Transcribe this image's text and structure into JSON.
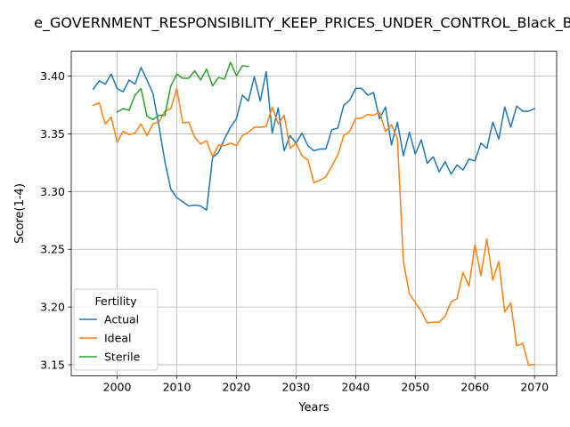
{
  "chart_data": {
    "type": "line",
    "title": "e_GOVERNMENT_RESPONSIBILITY_KEEP_PRICES_UNDER_CONTROL_Black_Belo",
    "xlabel": "Years",
    "ylabel": "Score(1-4)",
    "xlim": [
      1992.3,
      2073.7
    ],
    "ylim": [
      3.1405,
      3.4215
    ],
    "xticks": [
      2000,
      2010,
      2020,
      2030,
      2040,
      2050,
      2060,
      2070
    ],
    "yticks": [
      3.15,
      3.2,
      3.25,
      3.3,
      3.35,
      3.4
    ],
    "ytick_labels": [
      "3.15",
      "3.20",
      "3.25",
      "3.30",
      "3.35",
      "3.40"
    ],
    "grid": true,
    "legend": {
      "title": "Fertility",
      "placement": "lower-left"
    },
    "series": [
      {
        "name": "Actual",
        "color": "#1f77b4",
        "x": [
          1996,
          1997,
          1998,
          1999,
          2000,
          2001,
          2002,
          2003,
          2004,
          2005,
          2006,
          2007,
          2008,
          2009,
          2010,
          2011,
          2012,
          2013,
          2014,
          2015,
          2016,
          2017,
          2018,
          2019,
          2020,
          2021,
          2022,
          2023,
          2024,
          2025,
          2026,
          2027,
          2028,
          2029,
          2030,
          2031,
          2032,
          2033,
          2034,
          2035,
          2036,
          2037,
          2038,
          2039,
          2040,
          2041,
          2042,
          2043,
          2044,
          2045,
          2046,
          2047,
          2048,
          2049,
          2050,
          2051,
          2052,
          2053,
          2054,
          2055,
          2056,
          2057,
          2058,
          2059,
          2060,
          2061,
          2062,
          2063,
          2064,
          2065,
          2066,
          2067,
          2068,
          2069,
          2070
        ],
        "values": [
          3.3886,
          3.3959,
          3.393,
          3.4017,
          3.3893,
          3.3864,
          3.3966,
          3.393,
          3.4075,
          3.3966,
          3.3849,
          3.3572,
          3.3259,
          3.302,
          3.2948,
          3.2911,
          3.2875,
          3.2882,
          3.2875,
          3.2839,
          3.3295,
          3.3339,
          3.3455,
          3.3557,
          3.363,
          3.3835,
          3.3784,
          3.3995,
          3.3784,
          3.4039,
          3.3506,
          3.3725,
          3.3353,
          3.3484,
          3.3419,
          3.3506,
          3.3397,
          3.3353,
          3.3368,
          3.3368,
          3.3535,
          3.355,
          3.3747,
          3.3791,
          3.3893,
          3.3893,
          3.3835,
          3.3857,
          3.363,
          3.3732,
          3.3404,
          3.3601,
          3.331,
          3.3513,
          3.3324,
          3.3448,
          3.3244,
          3.3302,
          3.3171,
          3.3259,
          3.315,
          3.323,
          3.3186,
          3.3281,
          3.3266,
          3.3419,
          3.3375,
          3.3601,
          3.3455,
          3.3732,
          3.3557,
          3.374,
          3.3696,
          3.3696,
          3.3718
        ]
      },
      {
        "name": "Ideal",
        "color": "#ff7f0e",
        "x": [
          1996,
          1997,
          1998,
          1999,
          2000,
          2001,
          2002,
          2003,
          2004,
          2005,
          2006,
          2007,
          2008,
          2009,
          2010,
          2011,
          2012,
          2013,
          2014,
          2015,
          2016,
          2017,
          2018,
          2019,
          2020,
          2021,
          2022,
          2023,
          2024,
          2025,
          2026,
          2027,
          2028,
          2029,
          2030,
          2031,
          2032,
          2033,
          2034,
          2035,
          2036,
          2037,
          2038,
          2039,
          2040,
          2041,
          2042,
          2043,
          2044,
          2045,
          2046,
          2047,
          2048,
          2049,
          2050,
          2051,
          2052,
          2053,
          2054,
          2055,
          2056,
          2057,
          2058,
          2059,
          2060,
          2061,
          2062,
          2063,
          2064,
          2065,
          2066,
          2067,
          2068,
          2069,
          2070
        ],
        "values": [
          3.3747,
          3.3769,
          3.3586,
          3.3645,
          3.3426,
          3.3521,
          3.3492,
          3.3506,
          3.3586,
          3.3484,
          3.3586,
          3.3601,
          3.3696,
          3.3718,
          3.3893,
          3.3593,
          3.3601,
          3.347,
          3.3411,
          3.344,
          3.3302,
          3.3404,
          3.3397,
          3.3419,
          3.3397,
          3.3484,
          3.3513,
          3.3557,
          3.3557,
          3.3564,
          3.3732,
          3.3586,
          3.366,
          3.3375,
          3.3419,
          3.331,
          3.3273,
          3.3076,
          3.3098,
          3.3127,
          3.3222,
          3.3317,
          3.3484,
          3.3521,
          3.363,
          3.3637,
          3.3667,
          3.366,
          3.3689,
          3.3521,
          3.3579,
          3.3455,
          3.2394,
          3.2117,
          3.2037,
          3.1964,
          3.1862,
          3.1869,
          3.1869,
          3.1921,
          3.2044,
          3.2073,
          3.2299,
          3.2182,
          3.254,
          3.227,
          3.2591,
          3.2233,
          3.2394,
          3.1957,
          3.2037,
          3.1665,
          3.1686,
          3.1497,
          3.1504
        ]
      },
      {
        "name": "Sterile",
        "color": "#2ca02c",
        "x": [
          2000,
          2001,
          2002,
          2003,
          2004,
          2005,
          2006,
          2007,
          2008,
          2009,
          2010,
          2011,
          2012,
          2013,
          2014,
          2015,
          2016,
          2017,
          2018,
          2019,
          2020,
          2021,
          2022
        ],
        "values": [
          3.3689,
          3.3718,
          3.3703,
          3.3835,
          3.3893,
          3.3652,
          3.3623,
          3.366,
          3.366,
          3.3915,
          3.4017,
          3.3981,
          3.3981,
          3.4046,
          3.3966,
          3.4061,
          3.3915,
          3.3988,
          3.3974,
          3.4119,
          3.4003,
          3.409,
          3.4083
        ]
      }
    ]
  }
}
